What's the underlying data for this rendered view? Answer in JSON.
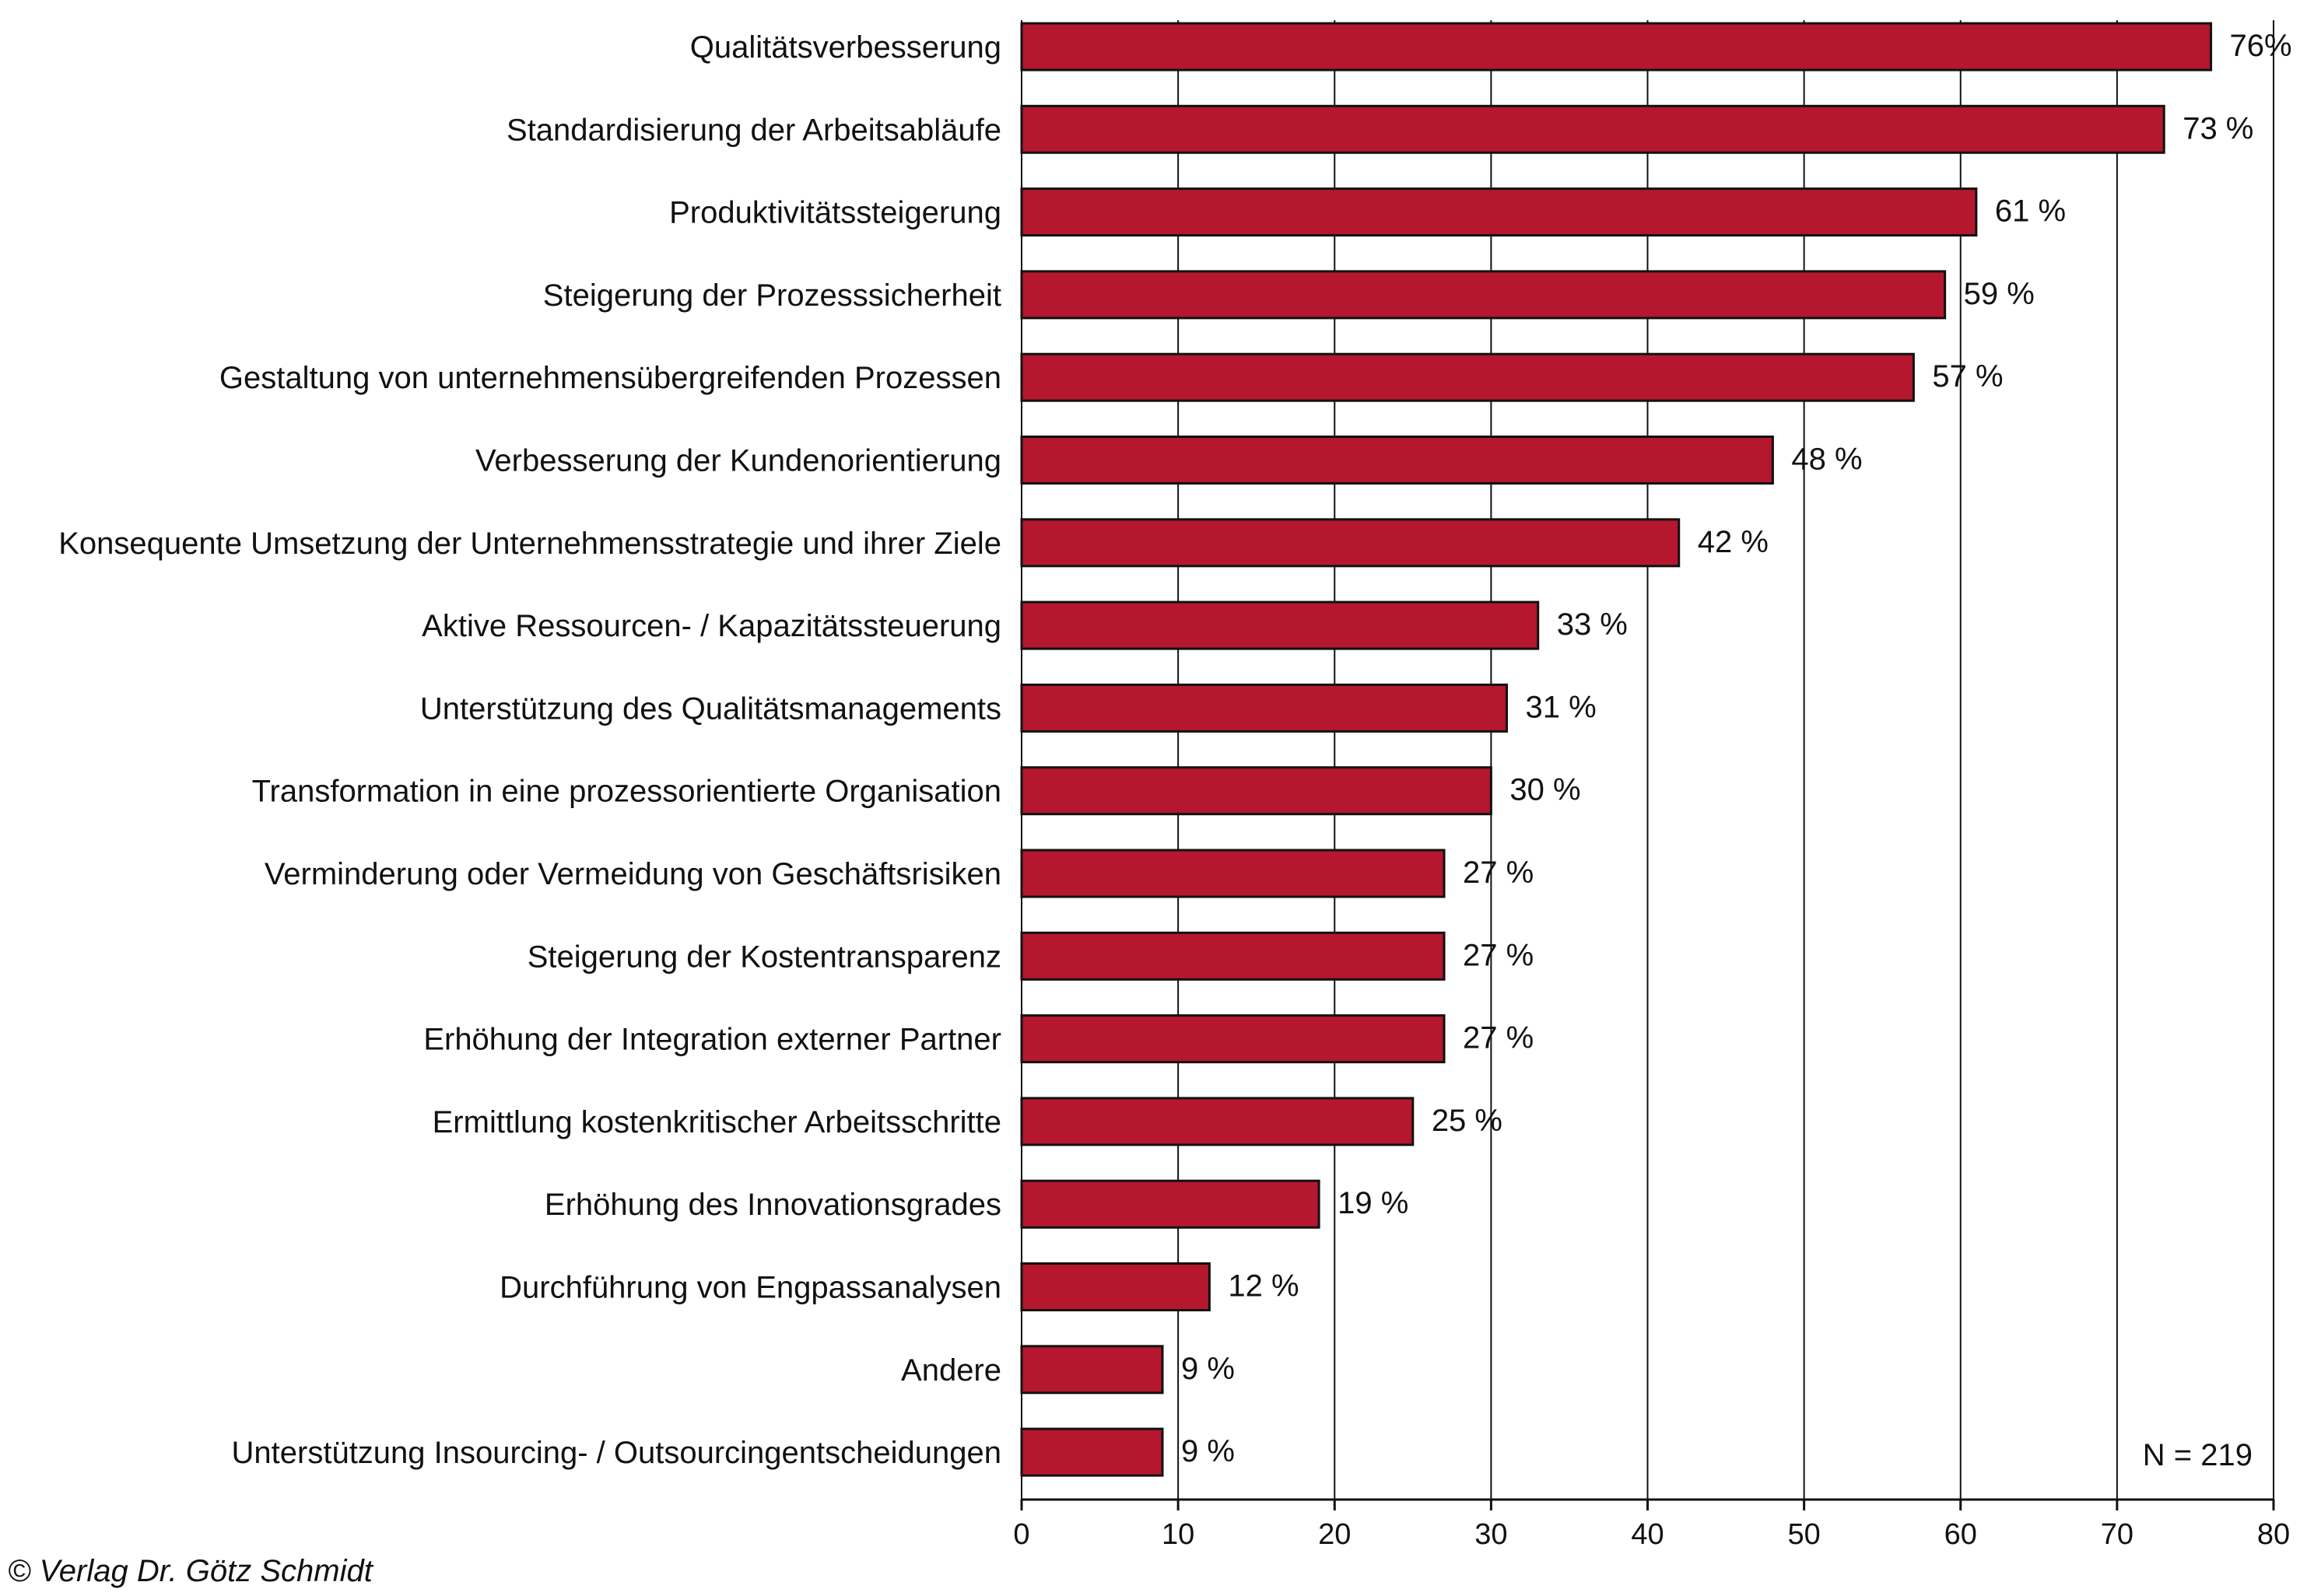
{
  "chart_data": {
    "type": "bar",
    "orientation": "horizontal",
    "categories": [
      "Qualitätsverbesserung",
      "Standardisierung der Arbeitsabläufe",
      "Produktivitätssteigerung",
      "Steigerung der Prozesssicherheit",
      "Gestaltung von unternehmensübergreifenden Prozessen",
      "Verbesserung der Kundenorientierung",
      "Konsequente Umsetzung der Unternehmensstrategie und ihrer Ziele",
      "Aktive Ressourcen- / Kapazitätssteuerung",
      "Unterstützung des Qualitätsmanagements",
      "Transformation in eine prozessorientierte Organisation",
      "Verminderung oder Vermeidung von Geschäftsrisiken",
      "Steigerung der Kostentransparenz",
      "Erhöhung der Integration externer Partner",
      "Ermittlung kostenkritischer Arbeitsschritte",
      "Erhöhung des Innovationsgrades",
      "Durchführung von Engpassanalysen",
      "Andere",
      "Unterstützung Insourcing- / Outsourcingentscheidungen"
    ],
    "values": [
      76,
      73,
      61,
      59,
      57,
      48,
      42,
      33,
      31,
      30,
      27,
      27,
      27,
      25,
      19,
      12,
      9,
      9
    ],
    "value_labels": [
      "76%",
      "73 %",
      "61 %",
      "59 %",
      "57 %",
      "48 %",
      "42 %",
      "33 %",
      "31 %",
      "30 %",
      "27 %",
      "27 %",
      "27 %",
      "25 %",
      "19 %",
      "12 %",
      "9 %",
      "9 %"
    ],
    "xlim": [
      0,
      80
    ],
    "xticks": [
      "0",
      "10",
      "20",
      "30",
      "40",
      "50",
      "60",
      "70",
      "80"
    ],
    "grid": true,
    "bar_color": "#b5172e",
    "annotation": "N = 219",
    "title": "",
    "xlabel": "",
    "ylabel": ""
  },
  "credit": "© Verlag Dr. Götz Schmidt"
}
